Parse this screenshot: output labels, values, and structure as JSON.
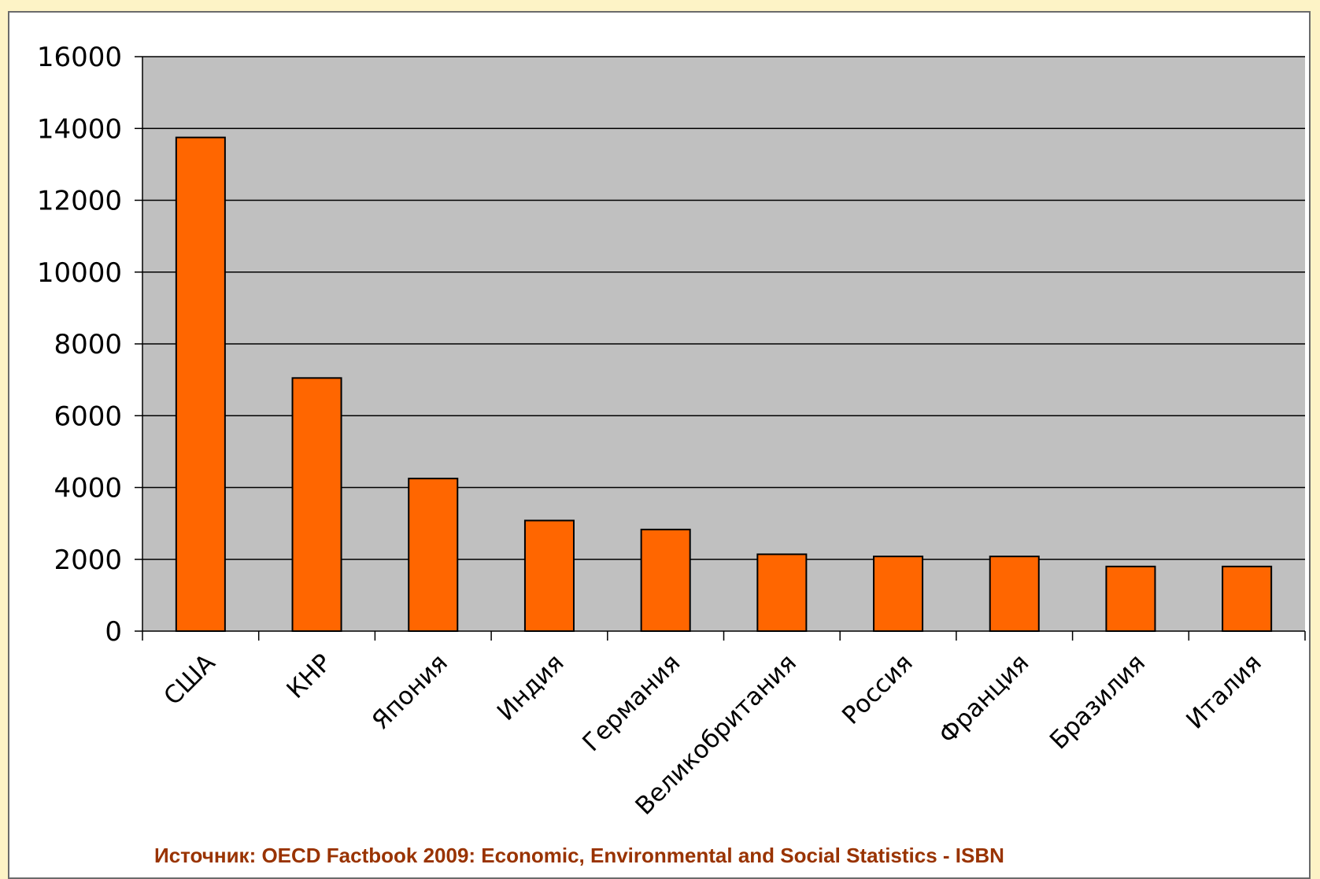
{
  "chart_data": {
    "type": "bar",
    "categories": [
      "США",
      "КНР",
      "Япония",
      "Индия",
      "Германия",
      "Великобритания",
      "Россия",
      "Франция",
      "Бразилия",
      "Италия"
    ],
    "values": [
      13750,
      7050,
      4250,
      3080,
      2830,
      2140,
      2080,
      2080,
      1800,
      1800
    ],
    "ylim": [
      0,
      16000
    ],
    "yticks": [
      0,
      2000,
      4000,
      6000,
      8000,
      10000,
      12000,
      14000,
      16000
    ],
    "grid": true,
    "legend": "none",
    "colors": {
      "bar": "#ff6600",
      "plot_background": "#c0c0c0",
      "gridline": "#000000"
    }
  },
  "source_note": "Источник: OECD Factbook 2009: Economic, Environmental and Social Statistics - ISBN",
  "colors": {
    "page_background": "#fdf3c6",
    "source_text": "#993300"
  }
}
